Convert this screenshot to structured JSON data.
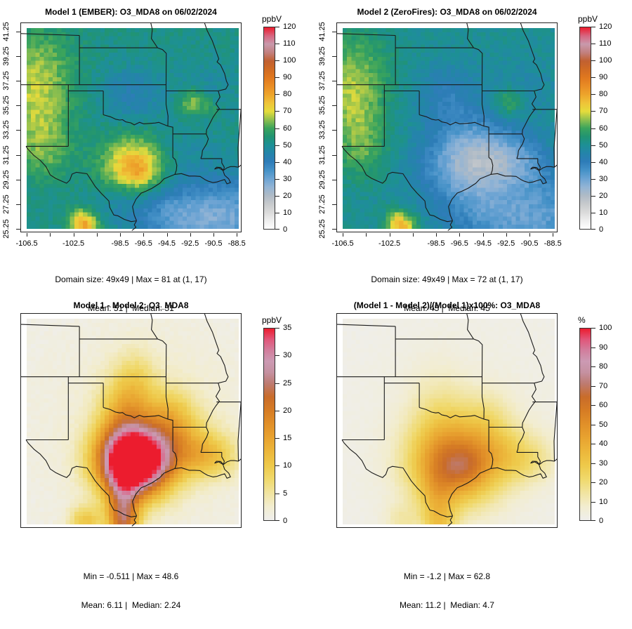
{
  "grid": {
    "nx": 49,
    "ny": 49,
    "raster_lon": [
      -106.6,
      -88.4
    ],
    "raster_lat": [
      25.3,
      41.6
    ]
  },
  "palettes": {
    "conc": [
      [
        0,
        "#fefefe"
      ],
      [
        0.042,
        "#eeeeee"
      ],
      [
        0.083,
        "#dadada"
      ],
      [
        0.125,
        "#c6c9cc"
      ],
      [
        0.167,
        "#aebac6"
      ],
      [
        0.208,
        "#92b4d5"
      ],
      [
        0.25,
        "#6ba3d3"
      ],
      [
        0.292,
        "#4491c7"
      ],
      [
        0.333,
        "#2e7cb8"
      ],
      [
        0.375,
        "#2484aa"
      ],
      [
        0.417,
        "#1d9095"
      ],
      [
        0.458,
        "#219472"
      ],
      [
        0.5,
        "#3ba45c"
      ],
      [
        0.542,
        "#90c04e"
      ],
      [
        0.583,
        "#e5dc3c"
      ],
      [
        0.625,
        "#efc338"
      ],
      [
        0.667,
        "#eda42b"
      ],
      [
        0.708,
        "#e98d25"
      ],
      [
        0.75,
        "#e0781f"
      ],
      [
        0.792,
        "#d06b24"
      ],
      [
        0.833,
        "#c16031"
      ],
      [
        0.875,
        "#c2807f"
      ],
      [
        0.917,
        "#c999ac"
      ],
      [
        0.958,
        "#d76580"
      ],
      [
        1,
        "#ec1c2d"
      ]
    ],
    "diff": [
      [
        0,
        "#efeeec"
      ],
      [
        0.071,
        "#f2edd0"
      ],
      [
        0.143,
        "#f1e4a0"
      ],
      [
        0.214,
        "#f0d96c"
      ],
      [
        0.286,
        "#eec94a"
      ],
      [
        0.357,
        "#ecb73b"
      ],
      [
        0.429,
        "#e8a330"
      ],
      [
        0.5,
        "#e19029"
      ],
      [
        0.571,
        "#d67c24"
      ],
      [
        0.643,
        "#c96c2a"
      ],
      [
        0.714,
        "#bd7b72"
      ],
      [
        0.771,
        "#c591a1"
      ],
      [
        0.829,
        "#cc9ab3"
      ],
      [
        0.886,
        "#d27e9d"
      ],
      [
        0.943,
        "#e1567a"
      ],
      [
        1,
        "#ec1c2e"
      ]
    ]
  },
  "chart_data": [
    {
      "type": "heatmap",
      "id": "model1",
      "title": "Model 1 (EMBER): O3_MDA8 on 06/02/2024",
      "variable": "O3_MDA8",
      "date": "06/02/2024",
      "stats_line1": "Domain size: 49x49 | Max = 81 at (1, 17)",
      "stats_line2": "Mean: 51 |  Median: 51",
      "stats": {
        "domain_size": "49x49",
        "max": 81,
        "max_at": "(1, 17)",
        "mean": 51,
        "median": 51
      },
      "colorbar": {
        "label": "ppbV",
        "min": 0,
        "max": 120,
        "tick_step": 10,
        "palette": "conc"
      },
      "show_axes": true,
      "axes": {
        "x_ticks": [
          {
            "lon": -106.5,
            "label": "-106.5"
          },
          {
            "lon": -104.5,
            "label": ""
          },
          {
            "lon": -102.5,
            "label": "-102.5"
          },
          {
            "lon": -100.5,
            "label": ""
          },
          {
            "lon": -98.5,
            "label": "-98.5"
          },
          {
            "lon": -96.5,
            "label": "-96.5"
          },
          {
            "lon": -94.5,
            "label": "-94.5"
          },
          {
            "lon": -92.5,
            "label": "-92.5"
          },
          {
            "lon": -90.5,
            "label": "-90.5"
          },
          {
            "lon": -88.5,
            "label": "-88.5"
          }
        ],
        "y_ticks": [
          {
            "lat": 41.25,
            "label": "41.25"
          },
          {
            "lat": 39.25,
            "label": "39.25"
          },
          {
            "lat": 37.25,
            "label": "37.25"
          },
          {
            "lat": 35.25,
            "label": "35.25"
          },
          {
            "lat": 33.25,
            "label": "33.25"
          },
          {
            "lat": 31.25,
            "label": "31.25"
          },
          {
            "lat": 29.25,
            "label": "29.25"
          },
          {
            "lat": 27.25,
            "label": "27.25"
          },
          {
            "lat": 25.25,
            "label": "25.25"
          }
        ]
      },
      "field": {
        "base": 52,
        "noise": 2.8,
        "blobs": [
          [
            -105.9,
            38.0,
            2.4,
            2.6,
            13
          ],
          [
            -105.6,
            34.3,
            1.8,
            2.2,
            9
          ],
          [
            -104.9,
            31.4,
            1.6,
            1.6,
            8
          ],
          [
            -97.6,
            36.2,
            1.9,
            1.5,
            -9
          ],
          [
            -92.4,
            35.6,
            0.8,
            0.8,
            14
          ],
          [
            -90.9,
            35.1,
            0.5,
            0.5,
            7
          ],
          [
            -97.35,
            30.35,
            1.9,
            1.6,
            27
          ],
          [
            -97.0,
            29.9,
            0.9,
            0.8,
            5
          ],
          [
            -90.8,
            25.6,
            4.0,
            2.2,
            -17
          ],
          [
            -93.8,
            26.8,
            2.8,
            1.6,
            -10
          ],
          [
            -88.8,
            27.5,
            1.6,
            2.0,
            -8
          ],
          [
            -98.6,
            27.7,
            1.5,
            1.2,
            -5
          ],
          [
            -93.3,
            31.0,
            2.2,
            1.8,
            -5
          ],
          [
            -91.0,
            36.9,
            2.0,
            1.6,
            -4
          ],
          [
            -101.6,
            25.55,
            0.9,
            0.7,
            26
          ],
          [
            -102.1,
            26.4,
            0.6,
            0.5,
            10
          ]
        ]
      }
    },
    {
      "type": "heatmap",
      "id": "model2",
      "title": "Model 2 (ZeroFires): O3_MDA8 on 06/02/2024",
      "variable": "O3_MDA8",
      "date": "06/02/2024",
      "stats_line1": "Domain size: 49x49 | Max = 72 at (1, 17)",
      "stats_line2": "Mean: 45 |  Median: 45",
      "stats": {
        "domain_size": "49x49",
        "max": 72,
        "max_at": "(1, 17)",
        "mean": 45,
        "median": 45
      },
      "colorbar": {
        "label": "ppbV",
        "min": 0,
        "max": 120,
        "tick_step": 10,
        "palette": "conc"
      },
      "show_axes": true,
      "axes": {
        "x_ticks": [
          {
            "lon": -106.5,
            "label": "-106.5"
          },
          {
            "lon": -104.5,
            "label": ""
          },
          {
            "lon": -102.5,
            "label": "-102.5"
          },
          {
            "lon": -100.5,
            "label": ""
          },
          {
            "lon": -98.5,
            "label": "-98.5"
          },
          {
            "lon": -96.5,
            "label": "-96.5"
          },
          {
            "lon": -94.5,
            "label": "-94.5"
          },
          {
            "lon": -92.5,
            "label": "-92.5"
          },
          {
            "lon": -90.5,
            "label": "-90.5"
          },
          {
            "lon": -88.5,
            "label": "-88.5"
          }
        ],
        "y_ticks": [
          {
            "lat": 41.25,
            "label": "41.25"
          },
          {
            "lat": 39.25,
            "label": "39.25"
          },
          {
            "lat": 37.25,
            "label": "37.25"
          },
          {
            "lat": 35.25,
            "label": "35.25"
          },
          {
            "lat": 33.25,
            "label": "33.25"
          },
          {
            "lat": 31.25,
            "label": "31.25"
          },
          {
            "lat": 29.25,
            "label": "29.25"
          },
          {
            "lat": 27.25,
            "label": "27.25"
          },
          {
            "lat": 25.25,
            "label": "25.25"
          }
        ]
      },
      "field": {
        "base": 50,
        "noise": 2.6,
        "blobs": [
          [
            -105.9,
            38.0,
            2.4,
            2.6,
            13
          ],
          [
            -105.6,
            34.3,
            1.8,
            2.2,
            10
          ],
          [
            -104.9,
            31.4,
            1.6,
            1.6,
            8
          ],
          [
            -97.6,
            36.1,
            2.0,
            1.7,
            -10
          ],
          [
            -92.4,
            35.6,
            0.8,
            0.8,
            12
          ],
          [
            -96.6,
            30.3,
            2.6,
            2.0,
            -17
          ],
          [
            -94.0,
            30.6,
            2.4,
            1.8,
            -13
          ],
          [
            -91.3,
            30.8,
            2.0,
            1.6,
            -11
          ],
          [
            -95.5,
            32.8,
            2.2,
            1.6,
            -8
          ],
          [
            -90.8,
            25.6,
            4.0,
            2.2,
            -13
          ],
          [
            -93.8,
            26.8,
            2.8,
            1.6,
            -8
          ],
          [
            -88.8,
            27.5,
            1.6,
            2.0,
            -6
          ],
          [
            -91.0,
            36.9,
            2.0,
            1.6,
            -4
          ],
          [
            -101.5,
            25.45,
            0.9,
            0.8,
            26
          ],
          [
            -102.2,
            26.3,
            0.5,
            0.5,
            8
          ]
        ]
      }
    },
    {
      "type": "heatmap",
      "id": "difference",
      "title": "Model 1 - Model 2: O3_MDA8",
      "variable": "O3_MDA8",
      "stats_line1": "Min = -0.511 | Max = 48.6",
      "stats_line2": "Mean: 6.11 |  Median: 2.24",
      "stats": {
        "min": -0.511,
        "max": 48.6,
        "mean": 6.11,
        "median": 2.24
      },
      "colorbar": {
        "label": "ppbV",
        "min": 0,
        "max": 35,
        "tick_step": 5,
        "palette": "diff"
      },
      "show_axes": false,
      "field": {
        "base": 0.6,
        "noise": 0.5,
        "blobs": [
          [
            -97.35,
            30.3,
            2.1,
            1.85,
            46
          ],
          [
            -98.3,
            33.8,
            1.5,
            2.2,
            9
          ],
          [
            -97.2,
            36.6,
            1.3,
            1.8,
            5
          ],
          [
            -98.35,
            27.0,
            1.0,
            1.8,
            13
          ],
          [
            -98.3,
            25.4,
            0.9,
            1.0,
            12
          ],
          [
            -93.0,
            31.3,
            2.2,
            1.5,
            8
          ],
          [
            -90.6,
            30.6,
            1.6,
            1.2,
            6
          ],
          [
            -94.3,
            33.9,
            1.6,
            1.5,
            8
          ],
          [
            -101.6,
            25.6,
            1.0,
            0.8,
            9
          ],
          [
            -96.0,
            33.0,
            5.5,
            5.0,
            2.5
          ]
        ]
      }
    },
    {
      "type": "heatmap",
      "id": "percent-difference",
      "title": "(Model 1 - Model 2)/(Model 1)x100%: O3_MDA8",
      "variable": "O3_MDA8",
      "stats_line1": "Min = -1.2 | Max = 62.8",
      "stats_line2": "Mean: 11.2 |  Median: 4.7",
      "stats": {
        "min": -1.2,
        "max": 62.8,
        "mean": 11.2,
        "median": 4.7
      },
      "colorbar": {
        "label": "%",
        "min": 0,
        "max": 100,
        "tick_step": 10,
        "palette": "diff"
      },
      "show_axes": false,
      "field": {
        "base": 1.2,
        "noise": 0.8,
        "blobs": [
          [
            -96.9,
            30.1,
            2.7,
            2.3,
            52
          ],
          [
            -96.2,
            29.8,
            1.2,
            1.0,
            9
          ],
          [
            -98.4,
            34.0,
            1.8,
            2.6,
            11
          ],
          [
            -98.5,
            27.0,
            1.1,
            2.0,
            16
          ],
          [
            -98.3,
            25.3,
            1.0,
            1.0,
            14
          ],
          [
            -92.7,
            31.0,
            2.3,
            1.6,
            13
          ],
          [
            -90.4,
            30.3,
            1.7,
            1.3,
            9
          ],
          [
            -94.2,
            33.9,
            1.6,
            1.6,
            9
          ],
          [
            -101.6,
            25.6,
            1.0,
            0.9,
            10
          ],
          [
            -96.5,
            32.5,
            5.5,
            5.0,
            3
          ]
        ]
      }
    }
  ]
}
